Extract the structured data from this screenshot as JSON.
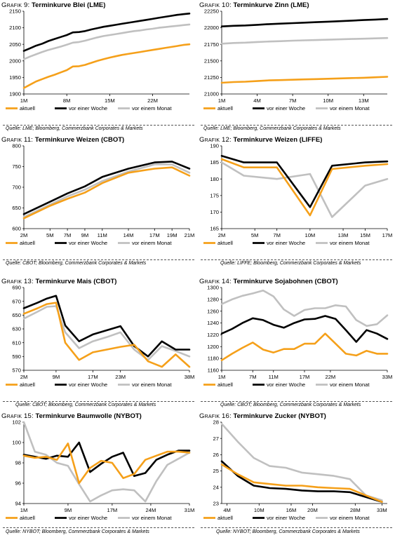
{
  "series_styles": {
    "aktuell": {
      "color": "#f5a01a"
    },
    "vor einer Woche": {
      "color": "#000000"
    },
    "vor einem Monat": {
      "color": "#c0c0c0"
    }
  },
  "chart_data": [
    {
      "type": "line",
      "grafik_label": "Grafik 9:",
      "title": "Terminkurve Blei (LME)",
      "source": "Quelle: LME; Bloomberg, Commerzbank Corporates & Markets",
      "ylim": [
        1900,
        2150
      ],
      "yticks": [
        1900,
        1950,
        2000,
        2050,
        2100,
        2150
      ],
      "xlim": [
        1,
        28
      ],
      "xticks": [
        {
          "v": 1,
          "l": "1M"
        },
        {
          "v": 8,
          "l": "8M"
        },
        {
          "v": 15,
          "l": "15M"
        },
        {
          "v": 22,
          "l": "22M"
        }
      ],
      "x": [
        1,
        2,
        3,
        4,
        5,
        6,
        7,
        8,
        9,
        10,
        11,
        12,
        13,
        14,
        15,
        16,
        17,
        18,
        19,
        20,
        21,
        22,
        23,
        24,
        25,
        26,
        27,
        28
      ],
      "series": [
        {
          "name": "aktuell",
          "values": [
            1918,
            1928,
            1938,
            1945,
            1952,
            1958,
            1965,
            1972,
            1983,
            1984,
            1988,
            1994,
            2000,
            2005,
            2010,
            2014,
            2018,
            2021,
            2024,
            2027,
            2030,
            2033,
            2036,
            2039,
            2042,
            2045,
            2048,
            2050
          ]
        },
        {
          "name": "vor einer Woche",
          "values": [
            2030,
            2038,
            2046,
            2052,
            2060,
            2066,
            2072,
            2078,
            2086,
            2087,
            2090,
            2095,
            2099,
            2103,
            2106,
            2109,
            2112,
            2115,
            2118,
            2121,
            2124,
            2127,
            2130,
            2133,
            2136,
            2139,
            2141,
            2143
          ]
        },
        {
          "name": "vor einem Monat",
          "values": [
            2005,
            2013,
            2020,
            2027,
            2033,
            2038,
            2043,
            2049,
            2055,
            2057,
            2061,
            2066,
            2071,
            2075,
            2078,
            2081,
            2084,
            2087,
            2090,
            2092,
            2095,
            2097,
            2100,
            2102,
            2104,
            2106,
            2108,
            2110
          ]
        }
      ]
    },
    {
      "type": "line",
      "grafik_label": "Grafik 10:",
      "title": "Terminkurve Zinn (LME)",
      "source": "Quelle: LME; Bloomberg, Commerzbank Corporates & Markets",
      "ylim": [
        21000,
        22250
      ],
      "yticks": [
        21000,
        21250,
        21500,
        21750,
        22000,
        22250
      ],
      "xlim": [
        1,
        15
      ],
      "xticks": [
        {
          "v": 1,
          "l": "1M"
        },
        {
          "v": 4,
          "l": "4M"
        },
        {
          "v": 7,
          "l": "7M"
        },
        {
          "v": 10,
          "l": "10M"
        },
        {
          "v": 13,
          "l": "13M"
        }
      ],
      "x": [
        1,
        2,
        3,
        4,
        5,
        6,
        7,
        8,
        9,
        10,
        11,
        12,
        13,
        14,
        15
      ],
      "series": [
        {
          "name": "aktuell",
          "values": [
            21170,
            21180,
            21185,
            21195,
            21205,
            21210,
            21215,
            21220,
            21225,
            21230,
            21235,
            21240,
            21245,
            21252,
            21260
          ]
        },
        {
          "name": "vor einer Woche",
          "values": [
            22020,
            22030,
            22035,
            22045,
            22055,
            22062,
            22070,
            22077,
            22085,
            22092,
            22100,
            22108,
            22116,
            22124,
            22132
          ]
        },
        {
          "name": "vor einem Monat",
          "values": [
            21760,
            21770,
            21775,
            21785,
            21792,
            21798,
            21805,
            21810,
            21815,
            21820,
            21825,
            21830,
            21835,
            21840,
            21845
          ]
        }
      ]
    },
    {
      "type": "line",
      "grafik_label": "Grafik 11:",
      "title": "Terminkurve Weizen (CBOT)",
      "source": "Quelle: CBOT; Bloomberg, Commerzbank Corporates & Markets",
      "ylim": [
        600,
        800
      ],
      "yticks": [
        600,
        650,
        700,
        750,
        800
      ],
      "xlim": [
        2,
        21
      ],
      "xticks": [
        {
          "v": 2,
          "l": "2M"
        },
        {
          "v": 5,
          "l": "5M"
        },
        {
          "v": 7,
          "l": "7M"
        },
        {
          "v": 9,
          "l": "9M"
        },
        {
          "v": 11,
          "l": "11M"
        },
        {
          "v": 14,
          "l": "14M"
        },
        {
          "v": 17,
          "l": "17M"
        },
        {
          "v": 19,
          "l": "19M"
        },
        {
          "v": 21,
          "l": "21M"
        }
      ],
      "x": [
        2,
        5,
        7,
        9,
        11,
        14,
        17,
        19,
        21
      ],
      "series": [
        {
          "name": "aktuell",
          "values": [
            625,
            655,
            672,
            687,
            710,
            735,
            745,
            748,
            728
          ]
        },
        {
          "name": "vor einer Woche",
          "values": [
            635,
            665,
            685,
            702,
            725,
            745,
            760,
            762,
            745
          ]
        },
        {
          "name": "vor einem Monat",
          "values": [
            628,
            658,
            678,
            694,
            715,
            738,
            755,
            755,
            735
          ]
        }
      ]
    },
    {
      "type": "line",
      "grafik_label": "Grafik 12:",
      "title": "Terminkurve Weizen (LIFFE)",
      "source": "Quelle: LIFFE; Bloomberg, Commerzbank Corporates & Markets",
      "ylim": [
        165,
        190
      ],
      "yticks": [
        165,
        170,
        175,
        180,
        185,
        190
      ],
      "xlim": [
        2,
        17
      ],
      "xticks": [
        {
          "v": 2,
          "l": "2M"
        },
        {
          "v": 5,
          "l": "5M"
        },
        {
          "v": 7,
          "l": "7M"
        },
        {
          "v": 10,
          "l": "10M"
        },
        {
          "v": 13,
          "l": "13M"
        },
        {
          "v": 15,
          "l": "15M"
        },
        {
          "v": 17,
          "l": "17M"
        }
      ],
      "x": [
        2,
        4,
        7,
        10,
        12,
        15,
        17
      ],
      "series": [
        {
          "name": "aktuell",
          "values": [
            186,
            183.5,
            183.5,
            169,
            183,
            184,
            184.5
          ]
        },
        {
          "name": "vor einer Woche",
          "values": [
            187,
            185,
            185,
            171.5,
            184,
            185,
            185.3
          ]
        },
        {
          "name": "vor einem Monat",
          "values": [
            185,
            181,
            180,
            181.5,
            168.5,
            178,
            180
          ]
        }
      ]
    },
    {
      "type": "line",
      "grafik_label": "Grafik 13:",
      "title": "Terminkurve Mais (CBOT)",
      "source": "Quelle: CBOT; Bloomberg, Commerzbank Corporates & Markets",
      "ylim": [
        570,
        690
      ],
      "yticks": [
        570,
        590,
        610,
        630,
        650,
        670,
        690
      ],
      "xlim": [
        2,
        38
      ],
      "xticks": [
        {
          "v": 2,
          "l": "2M"
        },
        {
          "v": 9,
          "l": "9M"
        },
        {
          "v": 17,
          "l": "17M"
        },
        {
          "v": 23,
          "l": "23M"
        },
        {
          "v": 38,
          "l": "38M"
        }
      ],
      "x": [
        2,
        5,
        7,
        9,
        11,
        14,
        17,
        20,
        23,
        26,
        29,
        32,
        35,
        38
      ],
      "series": [
        {
          "name": "aktuell",
          "values": [
            652,
            660,
            666,
            668,
            610,
            585,
            596,
            600,
            604,
            607,
            583,
            575,
            593,
            575
          ]
        },
        {
          "name": "vor einer Woche",
          "values": [
            660,
            668,
            674,
            678,
            635,
            612,
            622,
            628,
            634,
            605,
            590,
            612,
            600,
            600
          ]
        },
        {
          "name": "vor einem Monat",
          "values": [
            645,
            655,
            662,
            663,
            625,
            602,
            612,
            618,
            625,
            600,
            585,
            605,
            598,
            590
          ]
        }
      ]
    },
    {
      "type": "line",
      "grafik_label": "Grafik 14:",
      "title": "Terminkurve Sojabohnen (CBOT)",
      "source": "Quelle: CBOT; Bloomberg, Commerzbank Corporates & Markets",
      "ylim": [
        1160,
        1300
      ],
      "yticks": [
        1160,
        1180,
        1200,
        1220,
        1240,
        1260,
        1280,
        1300
      ],
      "xlim": [
        1,
        33
      ],
      "xticks": [
        {
          "v": 1,
          "l": "1M"
        },
        {
          "v": 7,
          "l": "7M"
        },
        {
          "v": 11,
          "l": "11M"
        },
        {
          "v": 17,
          "l": "17M"
        },
        {
          "v": 22,
          "l": "22M"
        },
        {
          "v": 33,
          "l": "33M"
        }
      ],
      "x": [
        1,
        3,
        5,
        7,
        9,
        11,
        13,
        15,
        17,
        19,
        21,
        23,
        25,
        27,
        29,
        31,
        33
      ],
      "series": [
        {
          "name": "aktuell",
          "values": [
            1177,
            1188,
            1198,
            1207,
            1195,
            1190,
            1196,
            1196,
            1205,
            1205,
            1222,
            1205,
            1188,
            1185,
            1193,
            1188,
            1188
          ]
        },
        {
          "name": "vor einer Woche",
          "values": [
            1222,
            1230,
            1240,
            1248,
            1245,
            1237,
            1232,
            1240,
            1246,
            1247,
            1252,
            1247,
            1228,
            1208,
            1228,
            1222,
            1213
          ]
        },
        {
          "name": "vor einem Monat",
          "values": [
            1272,
            1280,
            1286,
            1290,
            1295,
            1285,
            1263,
            1252,
            1262,
            1265,
            1265,
            1270,
            1268,
            1245,
            1235,
            1238,
            1253
          ]
        }
      ]
    },
    {
      "type": "line",
      "grafik_label": "Grafik 15:",
      "title": "Terminkurve Baumwolle (NYBOT)",
      "source": "Quelle: NYBOT; Bloomberg, Commerzbank Corporates & Markets",
      "ylim": [
        94,
        102
      ],
      "yticks": [
        94,
        96,
        98,
        100,
        102
      ],
      "xlim": [
        1,
        31
      ],
      "xticks": [
        {
          "v": 1,
          "l": "1M"
        },
        {
          "v": 9,
          "l": "9M"
        },
        {
          "v": 17,
          "l": "17M"
        },
        {
          "v": 24,
          "l": "24M"
        },
        {
          "v": 31,
          "l": "31M"
        }
      ],
      "x": [
        1,
        3,
        5,
        7,
        9,
        11,
        13,
        15,
        17,
        19,
        21,
        23,
        25,
        27,
        29,
        31
      ],
      "series": [
        {
          "name": "aktuell",
          "values": [
            98.7,
            98.5,
            98.6,
            98.3,
            99.9,
            96,
            97.5,
            98.2,
            98,
            96.5,
            96.9,
            98.3,
            98.7,
            99.1,
            99.1,
            99.0
          ]
        },
        {
          "name": "vor einer Woche",
          "values": [
            98.8,
            98.6,
            98.4,
            98.7,
            98.6,
            100,
            97.1,
            97.9,
            98.6,
            99,
            96.7,
            97,
            98.3,
            98.8,
            99.2,
            99.2
          ]
        },
        {
          "name": "vor einem Monat",
          "values": [
            102,
            99.1,
            98.8,
            98,
            97.7,
            95.9,
            94.2,
            94.8,
            95.3,
            95.4,
            95.3,
            94.2,
            96.2,
            97.8,
            98.4,
            99.0
          ]
        }
      ]
    },
    {
      "type": "line",
      "grafik_label": "Grafik 16:",
      "title": "Terminkurve Zucker (NYBOT)",
      "source": "Quelle: NYBOT; Bloomberg, Commerzbank Corporates & Markets",
      "ylim": [
        23,
        28
      ],
      "yticks": [
        23,
        24,
        25,
        26,
        27,
        28
      ],
      "xlim": [
        3,
        34
      ],
      "xticks": [
        {
          "v": 4,
          "l": "4M"
        },
        {
          "v": 10,
          "l": "10M"
        },
        {
          "v": 16,
          "l": "16M"
        },
        {
          "v": 20,
          "l": "20M"
        },
        {
          "v": 28,
          "l": "28M"
        },
        {
          "v": 33,
          "l": "33M"
        }
      ],
      "x": [
        3,
        6,
        9,
        12,
        15,
        18,
        21,
        24,
        27,
        30,
        33
      ],
      "series": [
        {
          "name": "aktuell",
          "values": [
            25.4,
            24.8,
            24.3,
            24.2,
            24.1,
            24.1,
            24.0,
            23.95,
            23.9,
            23.5,
            23.1
          ]
        },
        {
          "name": "vor einer Woche",
          "values": [
            25.6,
            24.7,
            24.1,
            23.95,
            23.9,
            23.8,
            23.75,
            23.75,
            23.7,
            23.4,
            23.1
          ]
        },
        {
          "name": "vor einem Monat",
          "values": [
            27.9,
            26.8,
            25.8,
            25.3,
            25.2,
            24.9,
            24.8,
            24.7,
            24.5,
            23.5,
            23.2
          ]
        }
      ]
    }
  ]
}
